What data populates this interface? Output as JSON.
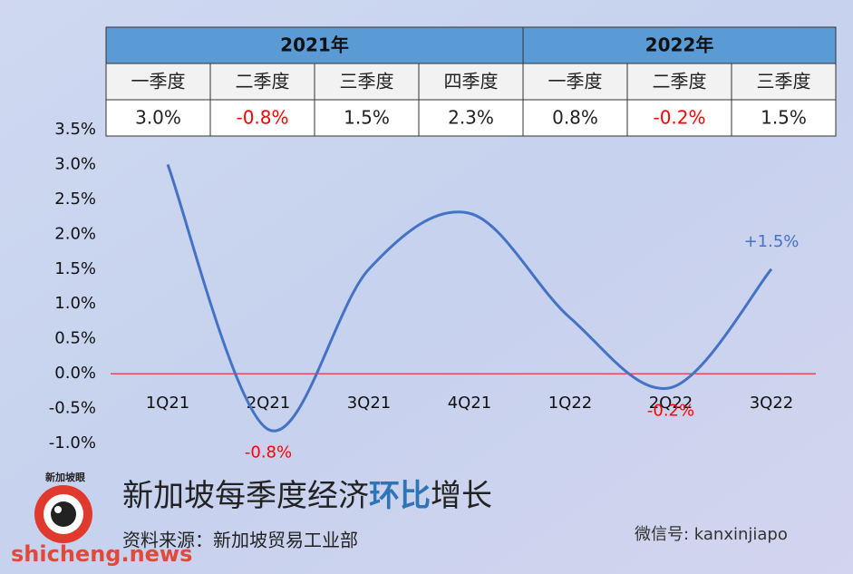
{
  "table": {
    "groups": [
      {
        "label": "2021年",
        "quarters": [
          "一季度",
          "二季度",
          "三季度",
          "四季度"
        ],
        "values": [
          "3.0%",
          "-0.8%",
          "1.5%",
          "2.3%"
        ]
      },
      {
        "label": "2022年",
        "quarters": [
          "一季度",
          "二季度",
          "三季度"
        ],
        "values": [
          "0.8%",
          "-0.2%",
          "1.5%"
        ]
      }
    ]
  },
  "chart_data": {
    "type": "line",
    "title": [
      "新加坡每季度经济",
      "环比",
      "增长"
    ],
    "categories": [
      "1Q21",
      "2Q21",
      "3Q21",
      "4Q21",
      "1Q22",
      "2Q22",
      "3Q22"
    ],
    "values": [
      3.0,
      -0.8,
      1.5,
      2.3,
      0.8,
      -0.2,
      1.5
    ],
    "value_labels": [
      null,
      "-0.8%",
      null,
      null,
      null,
      "-0.2%",
      "+1.5%"
    ],
    "color": "#4472c4",
    "negative_color": "#ff0000",
    "zero_line_color": "#ff0000",
    "ylim": [
      -1.0,
      3.5
    ],
    "yticks": [
      {
        "value": 3.5,
        "label": "3.5%"
      },
      {
        "value": 3.0,
        "label": "3.0%"
      },
      {
        "value": 2.5,
        "label": "2.5%"
      },
      {
        "value": 2.0,
        "label": "2.0%"
      },
      {
        "value": 1.5,
        "label": "1.5%"
      },
      {
        "value": 1.0,
        "label": "1.0%"
      },
      {
        "value": 0.5,
        "label": "0.5%"
      },
      {
        "value": 0.0,
        "label": "0.0%"
      },
      {
        "value": -0.5,
        "label": "-0.5%"
      },
      {
        "value": -1.0,
        "label": "-1.0%"
      }
    ]
  },
  "source": "资料来源：新加坡贸易工业部",
  "watermarks": {
    "logo": "新加坡眼",
    "wechat": "微信号: kanxinjiapo",
    "site": "shicheng.news"
  }
}
